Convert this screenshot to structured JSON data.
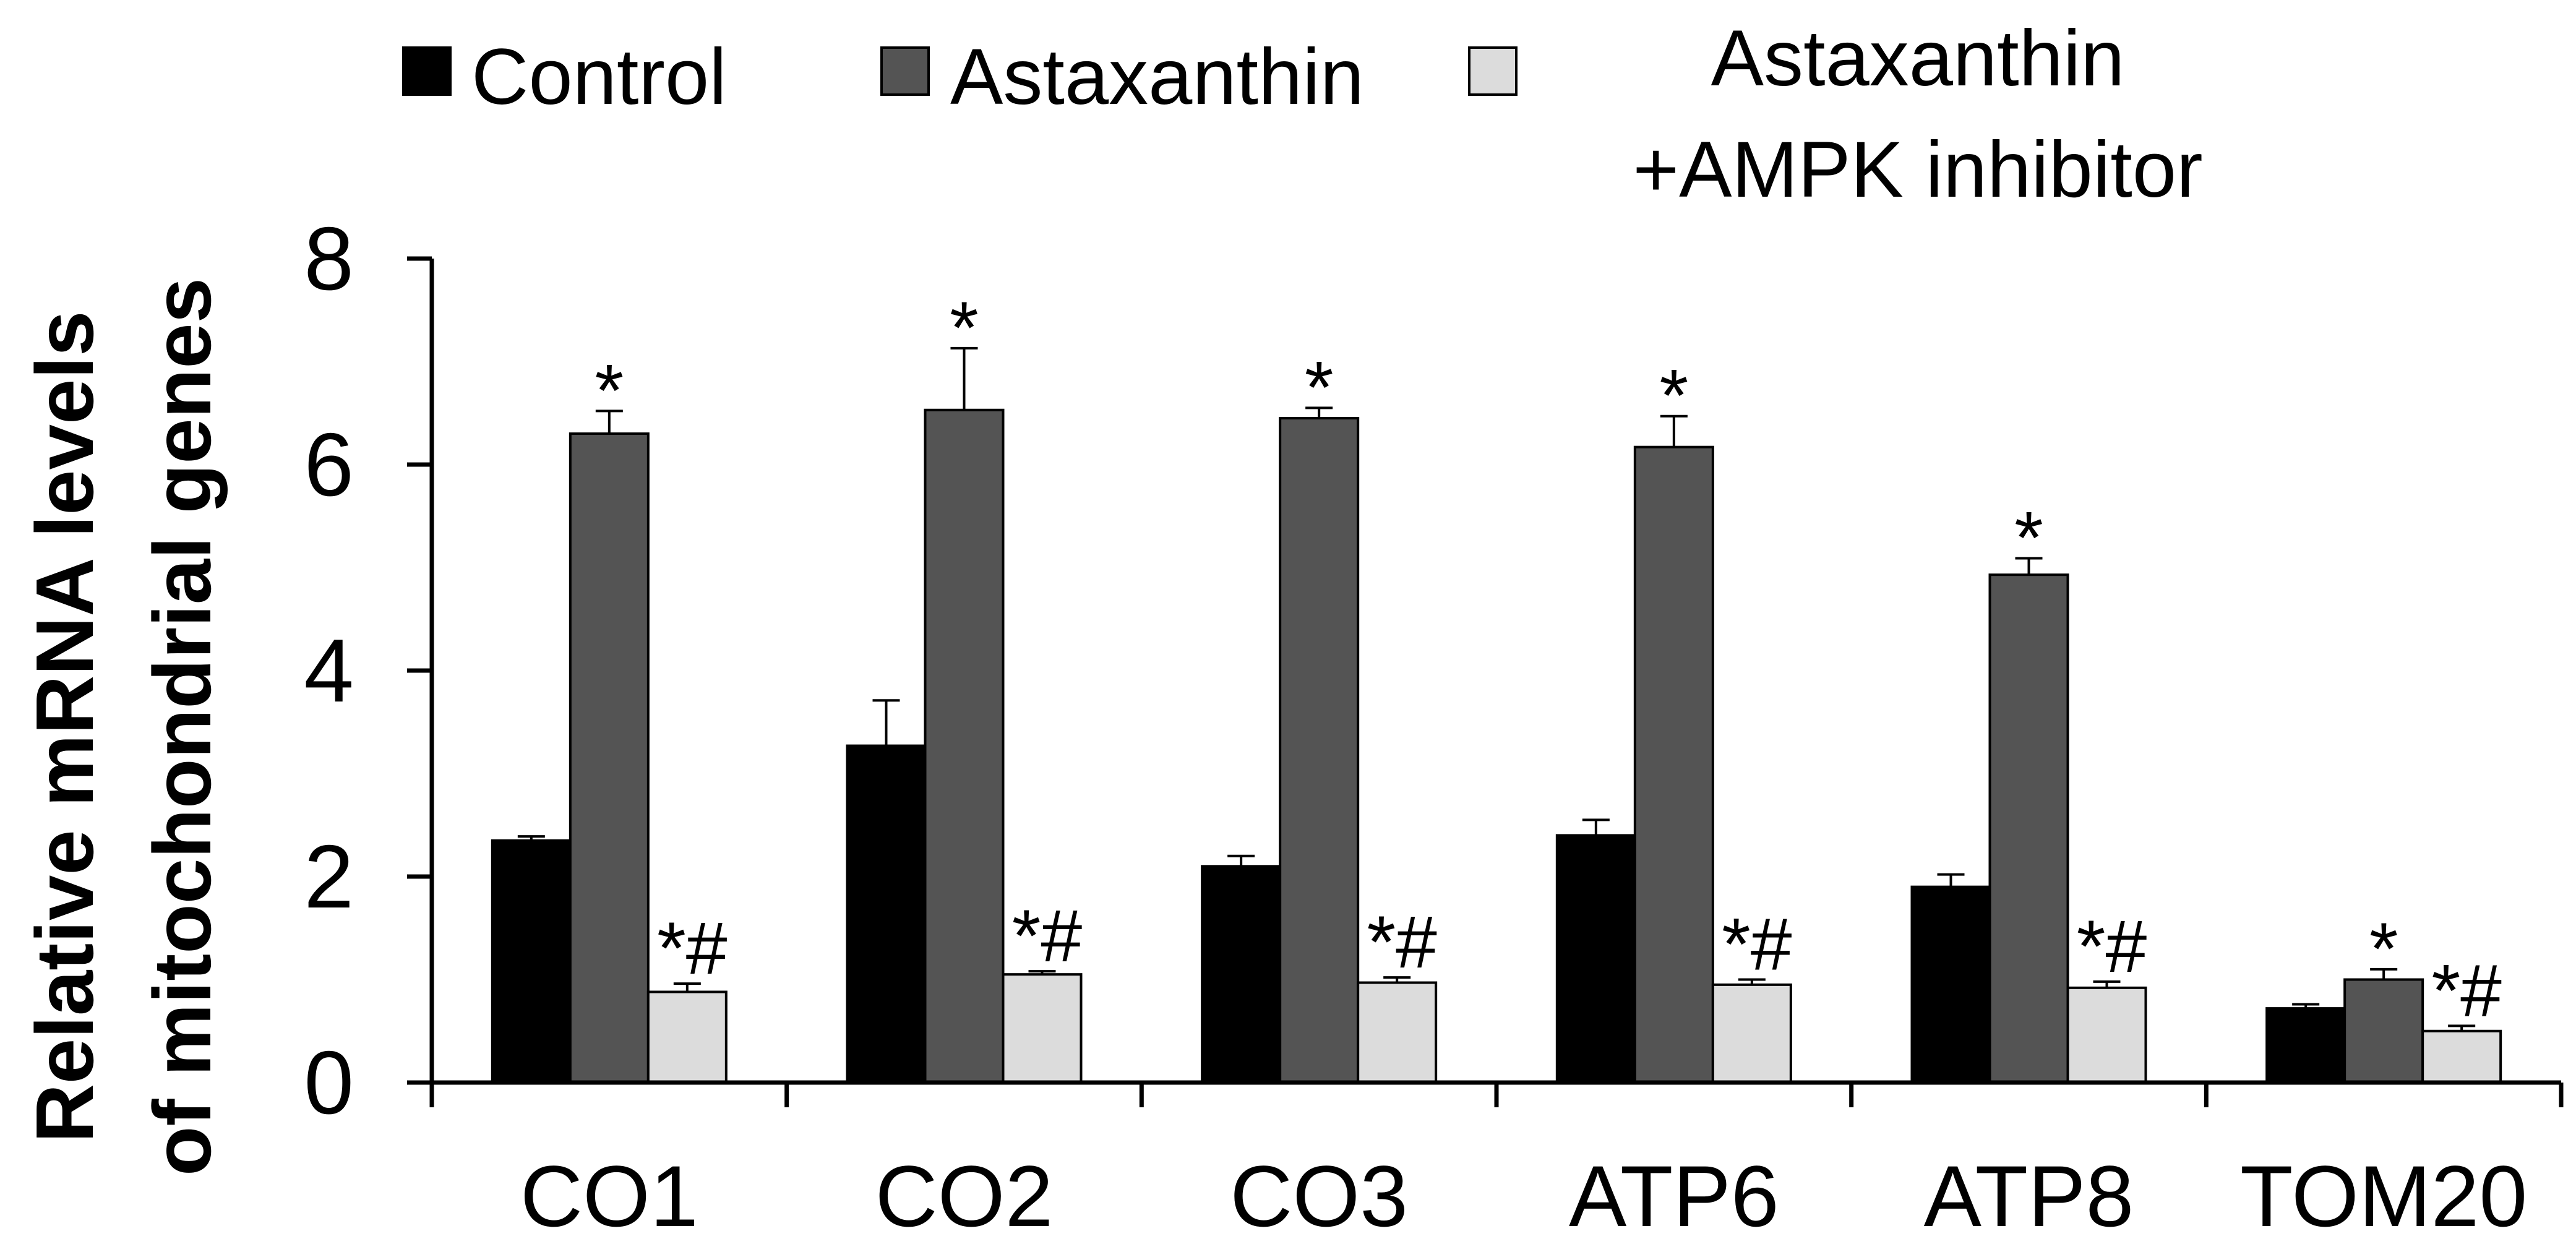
{
  "chart_data": {
    "type": "bar",
    "title": "",
    "xlabel": "",
    "ylabel": "Relative mRNA levels of mitochondrial genes",
    "ylabel_lines": [
      "Relative mRNA levels",
      "of mitochondrial genes"
    ],
    "ylim": [
      0,
      8
    ],
    "yticks": [
      0,
      2,
      4,
      6,
      8
    ],
    "grid": false,
    "legend_position": "top",
    "categories": [
      "CO1",
      "CO2",
      "CO3",
      "ATP6",
      "ATP8",
      "TOM20"
    ],
    "series": [
      {
        "name": "Control",
        "legend_lines": [
          "Control"
        ],
        "color": "#000000",
        "values": [
          2.35,
          3.27,
          2.1,
          2.4,
          1.9,
          0.72
        ],
        "errors": [
          0.04,
          0.44,
          0.1,
          0.15,
          0.12,
          0.04
        ],
        "markers": [
          "",
          "",
          "",
          "",
          "",
          ""
        ]
      },
      {
        "name": "Astaxanthin",
        "legend_lines": [
          "Astaxanthin"
        ],
        "color": "#545454",
        "values": [
          6.3,
          6.53,
          6.45,
          6.17,
          4.93,
          1.0
        ],
        "errors": [
          0.22,
          0.6,
          0.1,
          0.3,
          0.16,
          0.1
        ],
        "markers": [
          "*",
          "*",
          "*",
          "*",
          "*",
          "*"
        ]
      },
      {
        "name": "Astaxanthin +AMPK inhibitor",
        "legend_lines": [
          "Astaxanthin",
          "+AMPK inhibitor"
        ],
        "color": "#dcdcdc",
        "values": [
          0.88,
          1.05,
          0.97,
          0.95,
          0.92,
          0.5
        ],
        "errors": [
          0.08,
          0.03,
          0.05,
          0.05,
          0.06,
          0.05
        ],
        "markers": [
          "*#",
          "*#",
          "*#",
          "*#",
          "*#",
          "*#"
        ]
      }
    ]
  }
}
